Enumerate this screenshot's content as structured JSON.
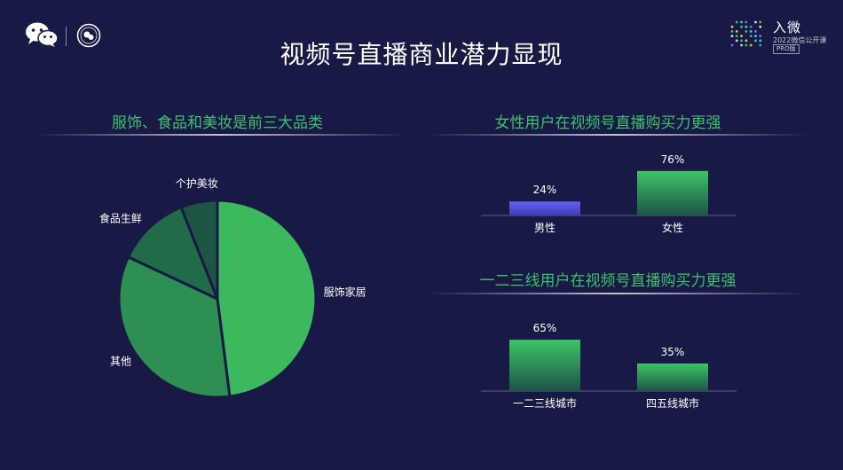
{
  "page": {
    "title": "视频号直播商业潜力显现",
    "brand": {
      "title": "入微",
      "subtitle": "2022微信公开课",
      "badge": "PRO版"
    }
  },
  "colors": {
    "background": "#181a45",
    "accent_green": "#3ec16d",
    "bar_blue": "#5a5ce0",
    "bar_green": "#35b55e"
  },
  "icons": [
    "wechat-logo-icon",
    "seal-logo-icon",
    "brand-dots-icon"
  ],
  "chart_data": [
    {
      "type": "pie",
      "title": "服饰、食品和美妆是前三大品类",
      "slices": [
        {
          "label": "服饰家居",
          "value": 48,
          "color": "#3cb95f"
        },
        {
          "label": "其他",
          "value": 34,
          "color": "#2d8f52"
        },
        {
          "label": "食品生鲜",
          "value": 12,
          "color": "#226b48"
        },
        {
          "label": "个护美妆",
          "value": 6,
          "color": "#1d5443"
        }
      ],
      "legend": "none"
    },
    {
      "type": "bar",
      "title": "女性用户在视频号直播购买力更强",
      "categories": [
        "男性",
        "女性"
      ],
      "values": [
        24,
        76
      ],
      "value_labels": [
        "24%",
        "76%"
      ],
      "unit": "%",
      "ylim": [
        0,
        100
      ],
      "grid": false
    },
    {
      "type": "bar",
      "title": "一二三线用户在视频号直播购买力更强",
      "categories": [
        "一二三线城市",
        "四五线城市"
      ],
      "values": [
        65,
        35
      ],
      "value_labels": [
        "65%",
        "35%"
      ],
      "unit": "%",
      "ylim": [
        0,
        100
      ],
      "grid": false
    }
  ]
}
